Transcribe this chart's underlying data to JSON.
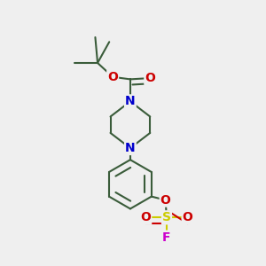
{
  "bg_color": "#efefef",
  "bond_color": "#3a5c3a",
  "bond_width": 1.5,
  "atom_colors": {
    "N": "#0000cc",
    "O": "#cc0000",
    "S": "#cccc00",
    "F": "#cc00cc",
    "C": "#000000"
  },
  "font_size_atoms": 10
}
